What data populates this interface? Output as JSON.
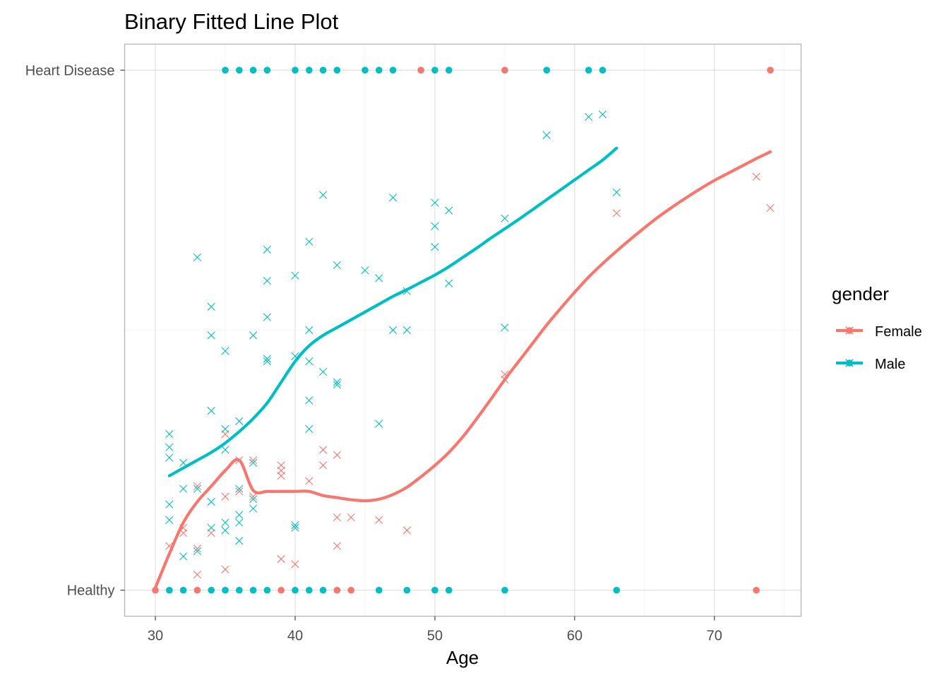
{
  "chart_data": {
    "type": "scatter",
    "title": "Binary Fitted Line Plot",
    "xlabel": "Age",
    "ylabel": "",
    "xlim": [
      27.8,
      76.2
    ],
    "ylim": [
      -0.05,
      1.05
    ],
    "x_ticks": [
      30,
      40,
      50,
      60,
      70
    ],
    "x_tick_labels": [
      "30",
      "40",
      "50",
      "60",
      "70"
    ],
    "y_ticks": [
      0,
      1
    ],
    "y_tick_labels": [
      "Healthy",
      "Heart Disease"
    ],
    "grid": true,
    "legend": {
      "title": "gender",
      "position": "right"
    },
    "colors": {
      "Female": "#F8766D",
      "Male": "#00BFC4"
    },
    "series": [
      {
        "name": "Female",
        "color": "#F8766D",
        "observed": [
          [
            30,
            0
          ],
          [
            33,
            0
          ],
          [
            39,
            0
          ],
          [
            43,
            0
          ],
          [
            44,
            0
          ],
          [
            73,
            0
          ],
          [
            49,
            1
          ],
          [
            55,
            1
          ],
          [
            74,
            1
          ]
        ],
        "fitted": [
          [
            31,
            0.085
          ],
          [
            32,
            0.11
          ],
          [
            32,
            0.12
          ],
          [
            33,
            0.03
          ],
          [
            33,
            0.08
          ],
          [
            33,
            0.2
          ],
          [
            34,
            0.11
          ],
          [
            35,
            0.04
          ],
          [
            35,
            0.18
          ],
          [
            35,
            0.3
          ],
          [
            36,
            0.25
          ],
          [
            36,
            0.19
          ],
          [
            37,
            0.25
          ],
          [
            37,
            0.18
          ],
          [
            39,
            0.23
          ],
          [
            39,
            0.22
          ],
          [
            39,
            0.24
          ],
          [
            39,
            0.06
          ],
          [
            40,
            0.05
          ],
          [
            41,
            0.21
          ],
          [
            42,
            0.27
          ],
          [
            42,
            0.24
          ],
          [
            43,
            0.26
          ],
          [
            43,
            0.14
          ],
          [
            43,
            0.085
          ],
          [
            44,
            0.14
          ],
          [
            46,
            0.135
          ],
          [
            48,
            0.115
          ],
          [
            55,
            0.415
          ],
          [
            55,
            0.405
          ],
          [
            63,
            0.725
          ],
          [
            73,
            0.795
          ],
          [
            74,
            0.735
          ]
        ],
        "curve": [
          [
            30,
            0.005
          ],
          [
            31,
            0.07
          ],
          [
            32,
            0.13
          ],
          [
            33,
            0.17
          ],
          [
            34,
            0.2
          ],
          [
            35,
            0.23
          ],
          [
            36,
            0.25
          ],
          [
            37,
            0.192
          ],
          [
            38,
            0.19
          ],
          [
            39,
            0.19
          ],
          [
            40,
            0.19
          ],
          [
            41,
            0.19
          ],
          [
            42,
            0.182
          ],
          [
            43,
            0.178
          ],
          [
            44,
            0.174
          ],
          [
            45,
            0.172
          ],
          [
            46,
            0.175
          ],
          [
            47,
            0.184
          ],
          [
            48,
            0.198
          ],
          [
            49,
            0.218
          ],
          [
            50,
            0.24
          ],
          [
            51,
            0.265
          ],
          [
            52,
            0.295
          ],
          [
            53,
            0.33
          ],
          [
            54,
            0.367
          ],
          [
            55,
            0.405
          ],
          [
            56,
            0.44
          ],
          [
            57,
            0.475
          ],
          [
            58,
            0.51
          ],
          [
            59,
            0.542
          ],
          [
            60,
            0.573
          ],
          [
            61,
            0.602
          ],
          [
            62,
            0.628
          ],
          [
            63,
            0.652
          ],
          [
            64,
            0.675
          ],
          [
            65,
            0.697
          ],
          [
            66,
            0.718
          ],
          [
            67,
            0.737
          ],
          [
            68,
            0.755
          ],
          [
            69,
            0.772
          ],
          [
            70,
            0.788
          ],
          [
            71,
            0.802
          ],
          [
            72,
            0.816
          ],
          [
            73,
            0.83
          ],
          [
            74,
            0.843
          ]
        ]
      },
      {
        "name": "Male",
        "color": "#00BFC4",
        "observed": [
          [
            31,
            0
          ],
          [
            32,
            0
          ],
          [
            34,
            0
          ],
          [
            35,
            0
          ],
          [
            36,
            0
          ],
          [
            37,
            0
          ],
          [
            38,
            0
          ],
          [
            40,
            0
          ],
          [
            41,
            0
          ],
          [
            42,
            0
          ],
          [
            46,
            0
          ],
          [
            48,
            0
          ],
          [
            50,
            0
          ],
          [
            51,
            0
          ],
          [
            55,
            0
          ],
          [
            63,
            0
          ],
          [
            35,
            1
          ],
          [
            36,
            1
          ],
          [
            37,
            1
          ],
          [
            38,
            1
          ],
          [
            40,
            1
          ],
          [
            41,
            1
          ],
          [
            42,
            1
          ],
          [
            43,
            1
          ],
          [
            45,
            1
          ],
          [
            46,
            1
          ],
          [
            47,
            1
          ],
          [
            50,
            1
          ],
          [
            51,
            1
          ],
          [
            58,
            1
          ],
          [
            61,
            1
          ],
          [
            62,
            1
          ]
        ],
        "fitted": [
          [
            31,
            0.165
          ],
          [
            31,
            0.135
          ],
          [
            31,
            0.3
          ],
          [
            31,
            0.275
          ],
          [
            31,
            0.255
          ],
          [
            32,
            0.245
          ],
          [
            32,
            0.195
          ],
          [
            32,
            0.065
          ],
          [
            33,
            0.195
          ],
          [
            33,
            0.075
          ],
          [
            33,
            0.64
          ],
          [
            34,
            0.12
          ],
          [
            34,
            0.17
          ],
          [
            34,
            0.545
          ],
          [
            34,
            0.49
          ],
          [
            34,
            0.345
          ],
          [
            35,
            0.31
          ],
          [
            35,
            0.13
          ],
          [
            35,
            0.115
          ],
          [
            35,
            0.27
          ],
          [
            35,
            0.46
          ],
          [
            36,
            0.095
          ],
          [
            36,
            0.145
          ],
          [
            36,
            0.13
          ],
          [
            36,
            0.325
          ],
          [
            36,
            0.195
          ],
          [
            37,
            0.245
          ],
          [
            37,
            0.175
          ],
          [
            37,
            0.157
          ],
          [
            37,
            0.49
          ],
          [
            38,
            0.44
          ],
          [
            38,
            0.445
          ],
          [
            38,
            0.595
          ],
          [
            38,
            0.655
          ],
          [
            38,
            0.525
          ],
          [
            40,
            0.12
          ],
          [
            40,
            0.125
          ],
          [
            40,
            0.45
          ],
          [
            40,
            0.605
          ],
          [
            41,
            0.67
          ],
          [
            41,
            0.5
          ],
          [
            41,
            0.44
          ],
          [
            41,
            0.365
          ],
          [
            41,
            0.31
          ],
          [
            42,
            0.42
          ],
          [
            42,
            0.76
          ],
          [
            43,
            0.625
          ],
          [
            43,
            0.395
          ],
          [
            43,
            0.4
          ],
          [
            45,
            0.615
          ],
          [
            46,
            0.6
          ],
          [
            46,
            0.32
          ],
          [
            47,
            0.755
          ],
          [
            47,
            0.5
          ],
          [
            48,
            0.5
          ],
          [
            48,
            0.575
          ],
          [
            50,
            0.7
          ],
          [
            50,
            0.66
          ],
          [
            50,
            0.745
          ],
          [
            51,
            0.59
          ],
          [
            51,
            0.73
          ],
          [
            55,
            0.505
          ],
          [
            55,
            0.715
          ],
          [
            58,
            0.875
          ],
          [
            61,
            0.91
          ],
          [
            62,
            0.915
          ],
          [
            63,
            0.765
          ]
        ],
        "curve": [
          [
            31,
            0.22
          ],
          [
            32,
            0.235
          ],
          [
            33,
            0.25
          ],
          [
            34,
            0.265
          ],
          [
            35,
            0.283
          ],
          [
            36,
            0.305
          ],
          [
            37,
            0.33
          ],
          [
            38,
            0.36
          ],
          [
            39,
            0.4
          ],
          [
            40,
            0.44
          ],
          [
            41,
            0.47
          ],
          [
            42,
            0.49
          ],
          [
            43,
            0.505
          ],
          [
            44,
            0.52
          ],
          [
            45,
            0.535
          ],
          [
            46,
            0.55
          ],
          [
            47,
            0.565
          ],
          [
            48,
            0.578
          ],
          [
            49,
            0.592
          ],
          [
            50,
            0.606
          ],
          [
            51,
            0.622
          ],
          [
            52,
            0.64
          ],
          [
            53,
            0.658
          ],
          [
            54,
            0.677
          ],
          [
            55,
            0.695
          ],
          [
            56,
            0.713
          ],
          [
            57,
            0.732
          ],
          [
            58,
            0.751
          ],
          [
            59,
            0.77
          ],
          [
            60,
            0.789
          ],
          [
            61,
            0.808
          ],
          [
            62,
            0.827
          ],
          [
            63,
            0.85
          ]
        ]
      }
    ]
  }
}
